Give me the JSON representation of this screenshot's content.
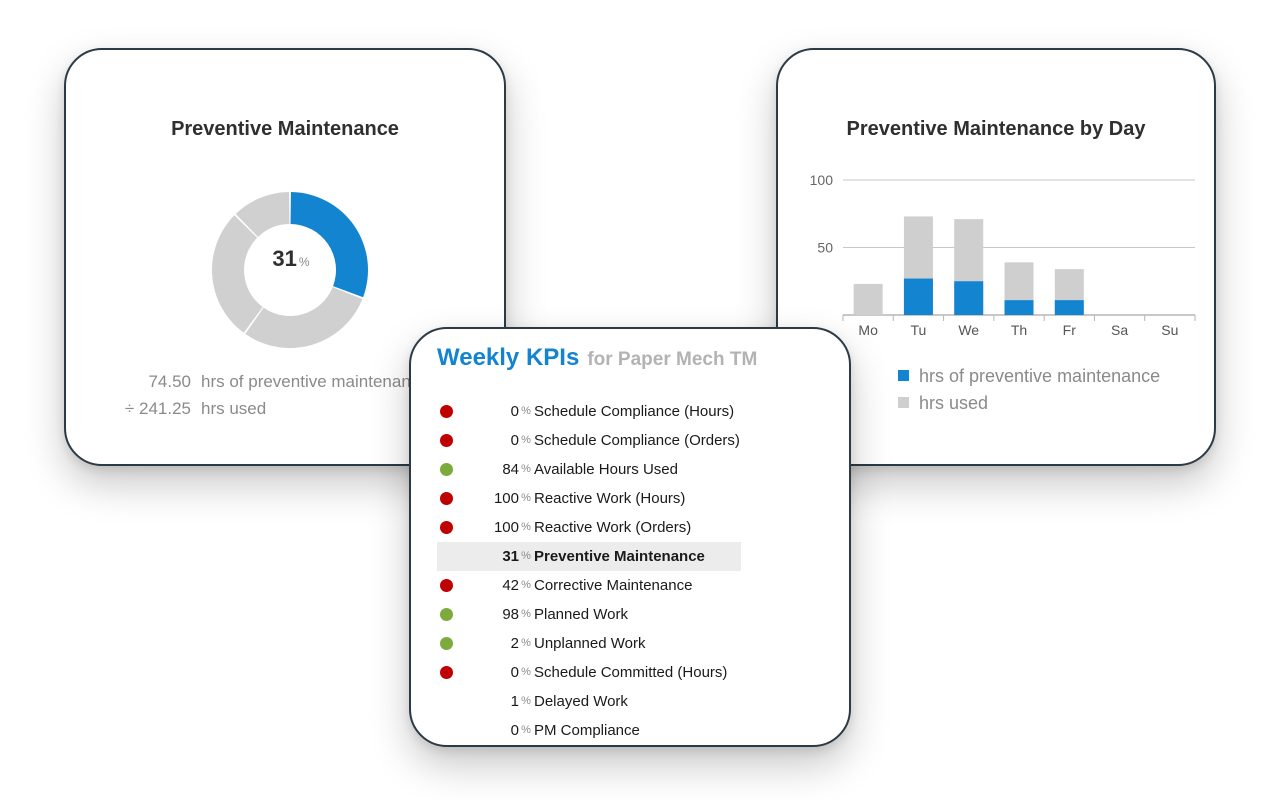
{
  "donut_card": {
    "title": "Preventive Maintenance",
    "center_value": "31",
    "center_unit": "%",
    "rows": [
      {
        "prefix": "",
        "value": "74.50",
        "label": "hrs of preventive maintenance"
      },
      {
        "prefix": "÷",
        "value": "241.25",
        "label": "hrs used"
      }
    ]
  },
  "bar_card": {
    "title": "Preventive Maintenance by Day",
    "legend": [
      {
        "label": "hrs of preventive maintenance",
        "color": "#1384d0"
      },
      {
        "label": "hrs used",
        "color": "#cfcfcf"
      }
    ]
  },
  "kpi_card": {
    "title": "Weekly KPIs",
    "subtitle": "for Paper Mech TM",
    "unit": "%",
    "items": [
      {
        "status": "red",
        "value": "0",
        "label": "Schedule Compliance (Hours)",
        "highlight": false
      },
      {
        "status": "red",
        "value": "0",
        "label": "Schedule Compliance (Orders)",
        "highlight": false
      },
      {
        "status": "green",
        "value": "84",
        "label": "Available Hours Used",
        "highlight": false
      },
      {
        "status": "red",
        "value": "100",
        "label": "Reactive Work (Hours)",
        "highlight": false
      },
      {
        "status": "red",
        "value": "100",
        "label": "Reactive Work (Orders)",
        "highlight": false
      },
      {
        "status": "none",
        "value": "31",
        "label": "Preventive Maintenance",
        "highlight": true
      },
      {
        "status": "red",
        "value": "42",
        "label": "Corrective Maintenance",
        "highlight": false
      },
      {
        "status": "green",
        "value": "98",
        "label": "Planned Work",
        "highlight": false
      },
      {
        "status": "green",
        "value": "2",
        "label": "Unplanned Work",
        "highlight": false
      },
      {
        "status": "red",
        "value": "0",
        "label": "Schedule Committed (Hours)",
        "highlight": false
      },
      {
        "status": "none",
        "value": "1",
        "label": "Delayed Work",
        "highlight": false
      },
      {
        "status": "none",
        "value": "0",
        "label": "PM Compliance",
        "highlight": false
      }
    ],
    "status_colors": {
      "red": "#c00000",
      "green": "#7cab3c"
    }
  },
  "chart_data": [
    {
      "type": "pie",
      "title": "Preventive Maintenance",
      "donut": true,
      "slices": [
        {
          "name": "preventive",
          "value": 74.5,
          "color": "#1384d0"
        },
        {
          "name": "other",
          "value": 166.75,
          "color": "#d0d0d0"
        }
      ],
      "center_label": "31%"
    },
    {
      "type": "bar",
      "title": "Preventive Maintenance by Day",
      "stacked": true,
      "categories": [
        "Mo",
        "Tu",
        "We",
        "Th",
        "Fr",
        "Sa",
        "Su"
      ],
      "series": [
        {
          "name": "hrs of preventive maintenance",
          "values": [
            0,
            27,
            25,
            11,
            11,
            0,
            0
          ],
          "color": "#1384d0"
        },
        {
          "name": "hrs used",
          "values": [
            23,
            73,
            71,
            39,
            34,
            0,
            0
          ],
          "color": "#cfcfcf"
        }
      ],
      "yticks": [
        50,
        100
      ],
      "ylim": [
        0,
        100
      ],
      "grid": true,
      "legend": "bottom"
    }
  ]
}
